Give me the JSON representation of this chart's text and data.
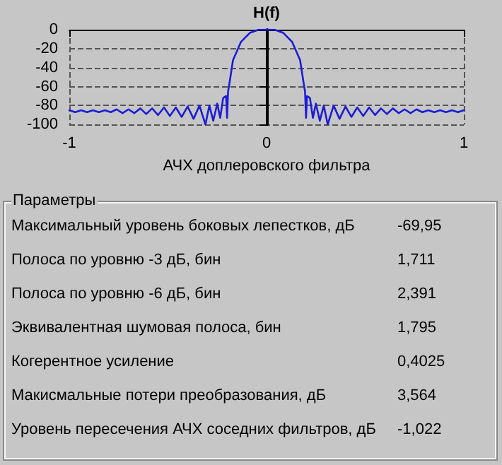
{
  "chart_data": [
    {
      "type": "line",
      "ylabel": "H(f)",
      "xlabel": "АЧХ доплеровского фильтра",
      "xlim": [
        -1,
        1
      ],
      "xticks": [
        -1,
        0,
        1
      ],
      "ylim": [
        -100,
        0
      ],
      "yticks": [
        -100,
        -80,
        -60,
        -40,
        -20,
        0
      ],
      "grid": true,
      "marker": "none",
      "line_style": "solid",
      "series": [
        {
          "color": "#1c1cd8",
          "x": [
            -1,
            -0.97,
            -0.94,
            -0.91,
            -0.88,
            -0.85,
            -0.82,
            -0.79,
            -0.76,
            -0.73,
            -0.7,
            -0.67,
            -0.64,
            -0.61,
            -0.58,
            -0.55,
            -0.52,
            -0.49,
            -0.46,
            -0.43,
            -0.4,
            -0.37,
            -0.34,
            -0.31,
            -0.29,
            -0.27,
            -0.25,
            -0.235,
            -0.22,
            -0.205,
            -0.2,
            -0.195,
            -0.19,
            -0.17,
            -0.13,
            -0.085,
            -0.04,
            0,
            0.04,
            0.085,
            0.13,
            0.17,
            0.19,
            0.195,
            0.2,
            0.205,
            0.22,
            0.235,
            0.25,
            0.27,
            0.29,
            0.31,
            0.34,
            0.37,
            0.4,
            0.43,
            0.46,
            0.49,
            0.52,
            0.55,
            0.58,
            0.61,
            0.64,
            0.67,
            0.7,
            0.73,
            0.76,
            0.79,
            0.82,
            0.85,
            0.88,
            0.91,
            0.94,
            0.97,
            1
          ],
          "values": [
            -85,
            -87,
            -85,
            -87,
            -85,
            -87,
            -85,
            -87,
            -84,
            -88,
            -84,
            -88,
            -83,
            -89,
            -83,
            -90,
            -82,
            -91,
            -82,
            -92,
            -81,
            -94,
            -80,
            -100,
            -80,
            -96,
            -78,
            -93,
            -72,
            -70,
            -93,
            -65,
            -59,
            -32,
            -13,
            -3.4,
            0,
            0,
            0,
            -3.4,
            -13,
            -32,
            -59,
            -65,
            -93,
            -70,
            -72,
            -93,
            -78,
            -96,
            -80,
            -100,
            -80,
            -94,
            -81,
            -92,
            -82,
            -91,
            -82,
            -90,
            -83,
            -89,
            -83,
            -88,
            -84,
            -88,
            -84,
            -87,
            -85,
            -87,
            -85,
            -87,
            -85,
            -87,
            -85
          ]
        }
      ]
    },
    {
      "type": "other",
      "title": "Параметры",
      "annotations": [
        "Максимальный уровень боковых лепестков, дБ",
        "-69,95",
        "Полоса по уровню -3 дБ, бин",
        "1,711",
        "Полоса по уровню -6 дБ, бин",
        "2,391",
        "Эквивалентная шумовая полоса, бин",
        "1,795",
        "Когерентное усиление",
        "0,4025",
        "Макисмальные потери преобразования, дБ",
        "3,564",
        "Уровень пересечения АЧХ соседних фильтров, дБ",
        "-1,022"
      ]
    }
  ]
}
